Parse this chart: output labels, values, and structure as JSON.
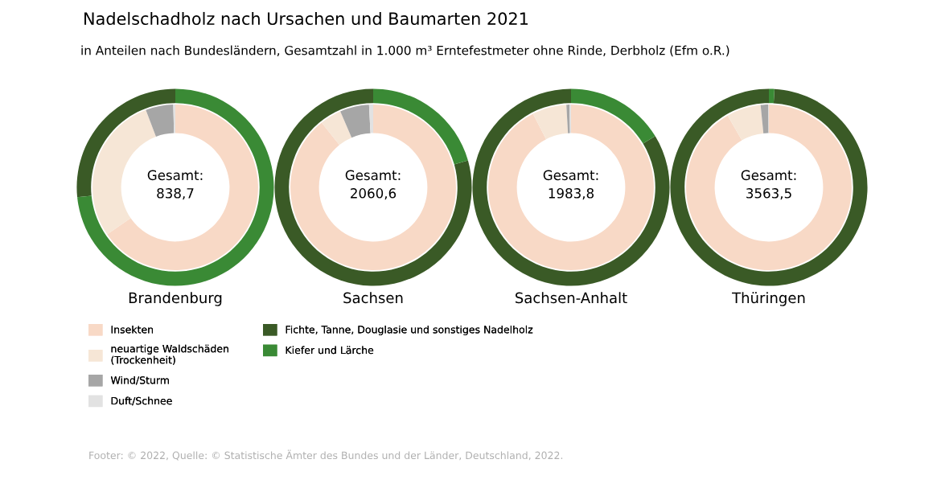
{
  "chart_data": [
    {
      "type": "donut",
      "title": "Nadelschadholz nach Ursachen und Baumarten 2021",
      "subtitle": "in Anteilen nach Bundesländern, Gesamtzahl in 1.000 m³ Erntefestmeter ohne Rinde, Derbholz (Efm o.R.)",
      "xlabel": "Brandenburg",
      "annotations": [
        "Gesamt:\n838,7",
        "Footer: © 2022, Quelle: © Statistische Ämter des Bundes und der Länder, Deutschland, 2022."
      ],
      "legend": "bottom",
      "categories": [
        "Insekten",
        "neuartige Waldschäden\n(Trockenheit)",
        "Wind/Sturm",
        "Duft/Schnee",
        "Fichte, Tanne, Douglasie und sonstiges Nadelholz",
        "Kiefer und Lärche"
      ],
      "colors": [
        "#f8d9c6",
        "#f6e6d6",
        "#a6a6a6",
        "#e2e2e2",
        "#3a5a26",
        "#3a8a35"
      ],
      "series": [
        {
          "values": [
            65.4,
            28.8,
            5.4,
            0.4,
            null,
            null
          ]
        },
        {
          "values": [
            null,
            null,
            null,
            null,
            26.6,
            73.4
          ]
        }
      ]
    },
    {
      "type": "donut",
      "xlabel": "Sachsen",
      "annotations": [
        "Gesamt:\n2060,6"
      ],
      "categories": [
        null,
        null,
        null,
        null,
        null,
        null
      ],
      "colors": [
        "#f8d9c6",
        "#f6e6d6",
        "#a6a6a6",
        "#e2e2e2",
        "#3a5a26",
        "#3a8a35"
      ],
      "series": [
        {
          "values": [
            89.3,
            4.2,
            5.7,
            0.8,
            null,
            null
          ]
        },
        {
          "values": [
            null,
            null,
            null,
            null,
            79.4,
            20.6
          ]
        }
      ]
    },
    {
      "type": "donut",
      "xlabel": "Sachsen-Anhalt",
      "annotations": [
        "Gesamt:\n1983,8"
      ],
      "categories": [
        null,
        null,
        null,
        null,
        null,
        null
      ],
      "colors": [
        "#f8d9c6",
        "#f6e6d6",
        "#a6a6a6",
        "#e2e2e2",
        "#3a5a26",
        "#3a8a35"
      ],
      "series": [
        {
          "values": [
            92.4,
            6.7,
            0.6,
            0.3,
            null,
            null
          ]
        },
        {
          "values": [
            null,
            null,
            null,
            null,
            83.7,
            16.3
          ]
        }
      ]
    },
    {
      "type": "donut",
      "xlabel": "Thüringen",
      "annotations": [
        "Gesamt:\n3563,5"
      ],
      "categories": [
        null,
        null,
        null,
        null,
        null,
        null
      ],
      "colors": [
        "#f8d9c6",
        "#f6e6d6",
        "#a6a6a6",
        "#e2e2e2",
        "#3a5a26",
        "#3a8a35"
      ],
      "series": [
        {
          "values": [
            91.7,
            6.7,
            1.5,
            0.1,
            null,
            null
          ]
        },
        {
          "values": [
            null,
            null,
            null,
            null,
            99.1,
            0.9
          ]
        }
      ]
    }
  ]
}
